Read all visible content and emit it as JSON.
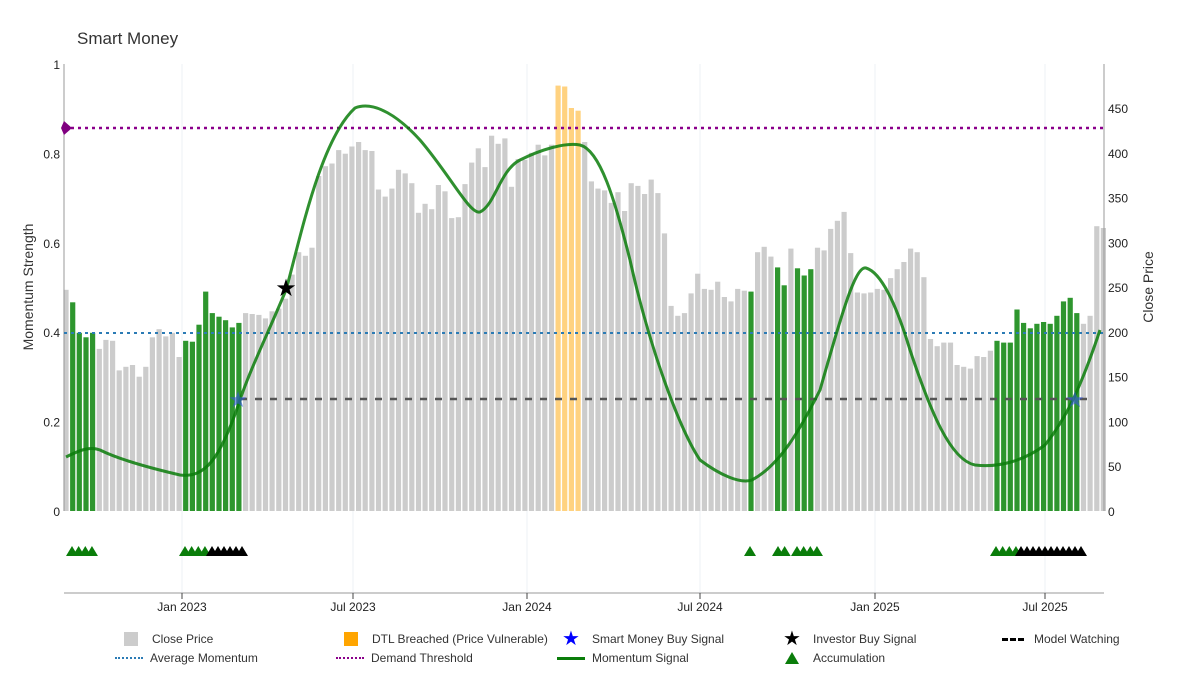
{
  "title": "Smart Money",
  "legend": {
    "close_price": "Close Price",
    "dtl_breached": "DTL Breached (Price Vulnerable)",
    "smart_money_buy": "Smart Money Buy Signal",
    "investor_buy": "Investor Buy Signal",
    "model_watching": "Model Watching",
    "average_momentum": "Average Momentum",
    "demand_threshold": "Demand Threshold",
    "momentum_signal": "Momentum Signal",
    "accumulation": "Accumulation"
  },
  "axes": {
    "left_label": "Momentum Strength",
    "right_label": "Close Price",
    "left_ticks": [
      "0",
      "0.2",
      "0.4",
      "0.6",
      "0.8",
      "1"
    ],
    "right_ticks": [
      "0",
      "50",
      "100",
      "150",
      "200",
      "250",
      "300",
      "350",
      "400",
      "450"
    ],
    "x_ticks": [
      "Jan 2023",
      "Jul 2023",
      "Jan 2024",
      "Jul 2024",
      "Jan 2025",
      "Jul 2025"
    ]
  },
  "colors": {
    "close_price": "#cccccc",
    "dtl_breached": "#ffd280",
    "accumulation_bar": "#2e962e",
    "momentum_line": "#0a7d0a",
    "average_momentum": "#2b7bb5",
    "demand_threshold": "#8b008b",
    "smart_money_star": "#0000ff",
    "investor_star": "#000000"
  },
  "chart_data": {
    "type": "bar+line",
    "title": "Smart Money",
    "xlabel": "",
    "ylabel": "Momentum Strength",
    "y2label": "Close Price",
    "ylim": [
      0,
      1
    ],
    "y2lim": [
      0,
      500
    ],
    "x_range": [
      "Oct 2022",
      "Sep 2025"
    ],
    "x_tick_labels": [
      "Jan 2023",
      "Jul 2023",
      "Jan 2024",
      "Jul 2024",
      "Jan 2025",
      "Jul 2025"
    ],
    "close_price": [
      247,
      233,
      199,
      194,
      199,
      181,
      191,
      190,
      157,
      161,
      163,
      150,
      161,
      194,
      203,
      195,
      199,
      172,
      190,
      189,
      208,
      245,
      221,
      217,
      213,
      205,
      210,
      221,
      220,
      219,
      215,
      223,
      226,
      237,
      264,
      289,
      285,
      294,
      374,
      385,
      388,
      403,
      399,
      407,
      412,
      403,
      402,
      359,
      351,
      360,
      381,
      377,
      366,
      333,
      343,
      337,
      364,
      357,
      327,
      328,
      365,
      389,
      405,
      384,
      419,
      410,
      416,
      362,
      393,
      392,
      400,
      409,
      397,
      409,
      475,
      474,
      450,
      447,
      412,
      368,
      360,
      358,
      344,
      356,
      335,
      366,
      363,
      354,
      370,
      355,
      310,
      229,
      218,
      221,
      243,
      265,
      248,
      247,
      256,
      239,
      234,
      248,
      246,
      245,
      289,
      295,
      284,
      272,
      252,
      293,
      271,
      263,
      270,
      294,
      291,
      315,
      324,
      334,
      288,
      244,
      243,
      244,
      248,
      247,
      260,
      270,
      278,
      293,
      289,
      261,
      192,
      184,
      188,
      188,
      163,
      161,
      159,
      173,
      172,
      179,
      190,
      188,
      188,
      225,
      210,
      204,
      209,
      211,
      209,
      218,
      234,
      238,
      221,
      209,
      218,
      318,
      316
    ],
    "bar_category": {
      "accumulation_indices": [
        1,
        2,
        3,
        4,
        18,
        19,
        20,
        21,
        22,
        23,
        24,
        25,
        26,
        103,
        107,
        108,
        110,
        111,
        112,
        140,
        141,
        142,
        143,
        144,
        145,
        146,
        147,
        148,
        149,
        150,
        151,
        152
      ],
      "dtl_breached_indices": [
        74,
        75,
        76,
        77
      ]
    },
    "momentum_signal": [
      {
        "x": "Oct 2022",
        "y": 0.12
      },
      {
        "x": "Nov 2022",
        "y": 0.14
      },
      {
        "x": "Dec 2022",
        "y": 0.1
      },
      {
        "x": "Jan 2023",
        "y": 0.08
      },
      {
        "x": "Feb 2023",
        "y": 0.15
      },
      {
        "x": "Mar 2023",
        "y": 0.3
      },
      {
        "x": "Apr 2023",
        "y": 0.5
      },
      {
        "x": "May 2023",
        "y": 0.8
      },
      {
        "x": "Jul 2023",
        "y": 0.9
      },
      {
        "x": "Sep 2023",
        "y": 0.86
      },
      {
        "x": "Nov 2023",
        "y": 0.69
      },
      {
        "x": "Dec 2023",
        "y": 0.66
      },
      {
        "x": "Jan 2024",
        "y": 0.79
      },
      {
        "x": "Mar 2024",
        "y": 0.82
      },
      {
        "x": "Apr 2024",
        "y": 0.72
      },
      {
        "x": "May 2024",
        "y": 0.4
      },
      {
        "x": "Jul 2024",
        "y": 0.1
      },
      {
        "x": "Aug 2024",
        "y": 0.065
      },
      {
        "x": "Oct 2024",
        "y": 0.15
      },
      {
        "x": "Nov 2024",
        "y": 0.3
      },
      {
        "x": "Dec 2024",
        "y": 0.54
      },
      {
        "x": "Jan 2025",
        "y": 0.47
      },
      {
        "x": "Feb 2025",
        "y": 0.25
      },
      {
        "x": "Apr 2025",
        "y": 0.1
      },
      {
        "x": "Jun 2025",
        "y": 0.12
      },
      {
        "x": "Aug 2025",
        "y": 0.25
      },
      {
        "x": "Sep 2025",
        "y": 0.41
      }
    ],
    "average_momentum": 0.4,
    "demand_threshold": 0.85,
    "model_watching_level": 0.25,
    "smart_money_buy_signals": [
      {
        "x": "Mar 2023",
        "y": 0.25
      },
      {
        "x": "Aug 2025",
        "y": 0.25
      }
    ],
    "investor_buy_signals": [
      {
        "x": "May 2023",
        "y": 0.5
      }
    ],
    "accumulation_markers": {
      "green_groups": [
        "Oct 2022 (4)",
        "Jan 2023 (4)",
        "Aug 2024 (1)",
        "Sep-Oct 2024 (6)",
        "May 2025 (4)"
      ],
      "black_groups": [
        "Feb-Mar 2023 (6)",
        "Jun-Aug 2025 (11)"
      ]
    },
    "legend_position": "bottom"
  }
}
